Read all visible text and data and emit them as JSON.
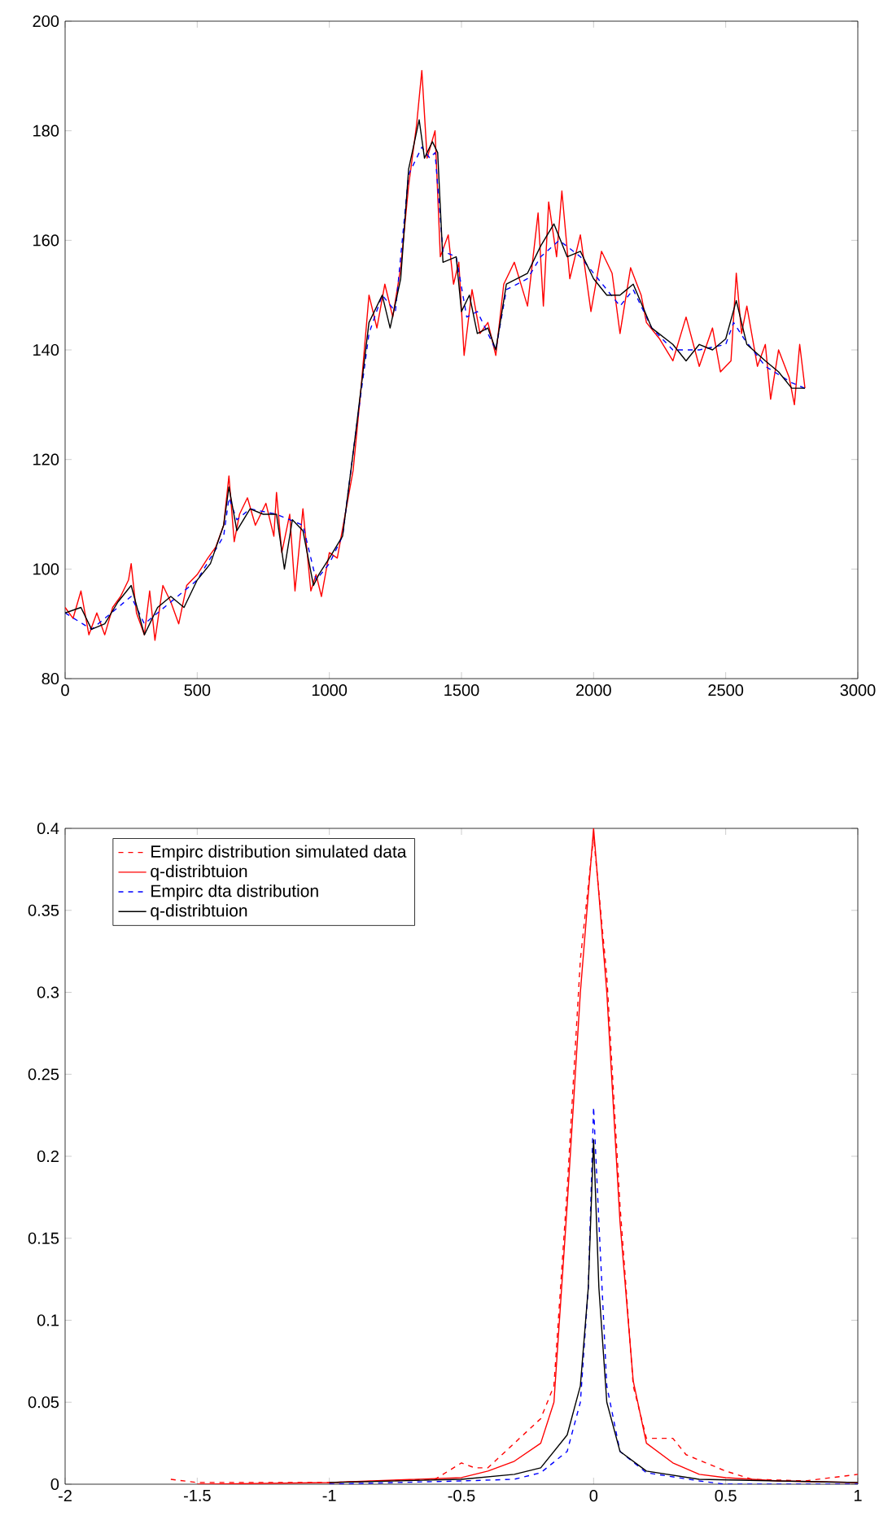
{
  "chart_data": [
    {
      "type": "line",
      "xlim": [
        0,
        3000
      ],
      "ylim": [
        80,
        200
      ],
      "xticks": [
        0,
        500,
        1000,
        1500,
        2000,
        2500,
        3000
      ],
      "yticks": [
        80,
        100,
        120,
        140,
        160,
        180,
        200
      ],
      "grid": false,
      "legend": false,
      "marker": "none",
      "series": [
        {
          "color": "#ff0000",
          "line_style": "solid",
          "x": [
            0,
            30,
            60,
            90,
            120,
            150,
            180,
            210,
            240,
            250,
            270,
            300,
            320,
            340,
            370,
            400,
            430,
            460,
            500,
            540,
            570,
            600,
            620,
            640,
            660,
            690,
            720,
            760,
            790,
            800,
            820,
            850,
            870,
            900,
            930,
            950,
            970,
            1000,
            1030,
            1060,
            1090,
            1120,
            1150,
            1180,
            1210,
            1240,
            1270,
            1300,
            1330,
            1350,
            1370,
            1400,
            1420,
            1450,
            1470,
            1490,
            1510,
            1540,
            1570,
            1600,
            1630,
            1660,
            1700,
            1750,
            1790,
            1810,
            1830,
            1860,
            1880,
            1910,
            1950,
            1990,
            2030,
            2070,
            2100,
            2140,
            2180,
            2200,
            2250,
            2300,
            2350,
            2400,
            2450,
            2480,
            2520,
            2540,
            2560,
            2580,
            2620,
            2650,
            2670,
            2700,
            2740,
            2760,
            2780,
            2800
          ],
          "values": [
            93,
            91,
            96,
            88,
            92,
            88,
            93,
            95,
            98,
            101,
            92,
            88,
            96,
            87,
            97,
            94,
            90,
            97,
            99,
            102,
            104,
            108,
            117,
            105,
            110,
            113,
            108,
            112,
            106,
            114,
            103,
            110,
            96,
            111,
            96,
            99,
            95,
            103,
            102,
            110,
            118,
            133,
            150,
            144,
            152,
            146,
            155,
            170,
            181,
            191,
            175,
            180,
            157,
            161,
            152,
            156,
            139,
            151,
            143,
            145,
            139,
            152,
            156,
            148,
            165,
            148,
            167,
            157,
            169,
            153,
            161,
            147,
            158,
            154,
            143,
            155,
            150,
            145,
            142,
            138,
            146,
            137,
            144,
            136,
            138,
            154,
            143,
            148,
            137,
            141,
            131,
            140,
            135,
            130,
            141,
            133
          ]
        },
        {
          "color": "#0000ff",
          "line_style": "dashed",
          "x": [
            0,
            100,
            200,
            250,
            300,
            400,
            500,
            600,
            620,
            650,
            700,
            800,
            900,
            950,
            1000,
            1050,
            1100,
            1150,
            1200,
            1250,
            1300,
            1350,
            1380,
            1400,
            1430,
            1480,
            1520,
            1560,
            1600,
            1630,
            1670,
            1750,
            1800,
            1870,
            1950,
            2000,
            2100,
            2150,
            2220,
            2300,
            2400,
            2500,
            2530,
            2570,
            2650,
            2750,
            2800
          ],
          "values": [
            92,
            89,
            93,
            95,
            90,
            94,
            98,
            106,
            113,
            109,
            111,
            110,
            108,
            98,
            101,
            106,
            125,
            143,
            150,
            147,
            172,
            177,
            175,
            176,
            158,
            157,
            146,
            147,
            143,
            140,
            151,
            153,
            157,
            160,
            157,
            154,
            148,
            151,
            144,
            140,
            140,
            141,
            145,
            142,
            137,
            134,
            133
          ]
        },
        {
          "color": "#000000",
          "line_style": "solid",
          "x": [
            0,
            60,
            100,
            150,
            200,
            250,
            300,
            350,
            400,
            450,
            500,
            550,
            600,
            620,
            650,
            700,
            750,
            800,
            830,
            860,
            900,
            940,
            960,
            1000,
            1050,
            1100,
            1150,
            1200,
            1230,
            1270,
            1300,
            1340,
            1360,
            1390,
            1410,
            1430,
            1480,
            1500,
            1530,
            1560,
            1600,
            1630,
            1670,
            1750,
            1800,
            1850,
            1900,
            1950,
            2000,
            2050,
            2100,
            2150,
            2220,
            2300,
            2350,
            2400,
            2450,
            2500,
            2540,
            2580,
            2650,
            2700,
            2750,
            2800
          ],
          "values": [
            92,
            93,
            89,
            90,
            94,
            97,
            88,
            93,
            95,
            93,
            98,
            101,
            108,
            115,
            107,
            111,
            110,
            110,
            100,
            109,
            107,
            97,
            99,
            102,
            106,
            125,
            145,
            150,
            144,
            153,
            173,
            182,
            175,
            178,
            176,
            156,
            157,
            147,
            150,
            143,
            144,
            140,
            152,
            154,
            159,
            163,
            157,
            158,
            153,
            150,
            150,
            152,
            144,
            141,
            138,
            141,
            140,
            142,
            149,
            141,
            138,
            136,
            133,
            133
          ]
        }
      ]
    },
    {
      "type": "line",
      "xlim": [
        -2,
        1
      ],
      "ylim": [
        0,
        0.4
      ],
      "xticks": [
        -2,
        -1.5,
        -1,
        -0.5,
        0,
        0.5,
        1
      ],
      "yticks": [
        0,
        0.05,
        0.1,
        0.15,
        0.2,
        0.25,
        0.3,
        0.35,
        0.4
      ],
      "grid": false,
      "legend": "top left",
      "marker": "none",
      "series": [
        {
          "name": "Empirc distribution simulated data",
          "color": "#ff0000",
          "line_style": "dashed",
          "x": [
            -1.6,
            -1.5,
            -1,
            -0.6,
            -0.5,
            -0.45,
            -0.4,
            -0.3,
            -0.2,
            -0.15,
            -0.1,
            -0.05,
            0,
            0.05,
            0.1,
            0.15,
            0.2,
            0.3,
            0.35,
            0.5,
            0.6,
            0.8,
            1
          ],
          "values": [
            0.003,
            0.001,
            0.001,
            0.003,
            0.013,
            0.01,
            0.01,
            0.025,
            0.04,
            0.06,
            0.18,
            0.32,
            0.395,
            0.31,
            0.17,
            0.06,
            0.028,
            0.028,
            0.018,
            0.008,
            0.003,
            0.002,
            0.006
          ]
        },
        {
          "name": "q-distribtuion",
          "color": "#ff0000",
          "line_style": "solid",
          "x": [
            -1.5,
            -1,
            -0.5,
            -0.4,
            -0.3,
            -0.2,
            -0.15,
            -0.1,
            -0.05,
            0,
            0.05,
            0.1,
            0.15,
            0.2,
            0.3,
            0.4,
            0.5,
            0.7,
            1
          ],
          "values": [
            0,
            0.001,
            0.004,
            0.008,
            0.014,
            0.025,
            0.05,
            0.17,
            0.3,
            0.4,
            0.3,
            0.16,
            0.063,
            0.025,
            0.013,
            0.006,
            0.004,
            0.002,
            0.001
          ]
        },
        {
          "name": "Empirc dta distribution",
          "color": "#0000ff",
          "line_style": "dashed",
          "x": [
            -1,
            -0.5,
            -0.3,
            -0.2,
            -0.1,
            -0.05,
            -0.02,
            0,
            0.02,
            0.05,
            0.1,
            0.2,
            0.4,
            0.5,
            1
          ],
          "values": [
            0,
            0.002,
            0.003,
            0.007,
            0.02,
            0.05,
            0.12,
            0.23,
            0.16,
            0.06,
            0.02,
            0.007,
            0.002,
            0,
            0
          ]
        },
        {
          "name": "q-distribtuion",
          "color": "#000000",
          "line_style": "solid",
          "x": [
            -1,
            -0.5,
            -0.3,
            -0.2,
            -0.1,
            -0.05,
            -0.02,
            0,
            0.02,
            0.05,
            0.1,
            0.2,
            0.4,
            1
          ],
          "values": [
            0.001,
            0.003,
            0.006,
            0.01,
            0.03,
            0.06,
            0.12,
            0.21,
            0.12,
            0.05,
            0.02,
            0.008,
            0.003,
            0.001
          ]
        }
      ]
    }
  ]
}
